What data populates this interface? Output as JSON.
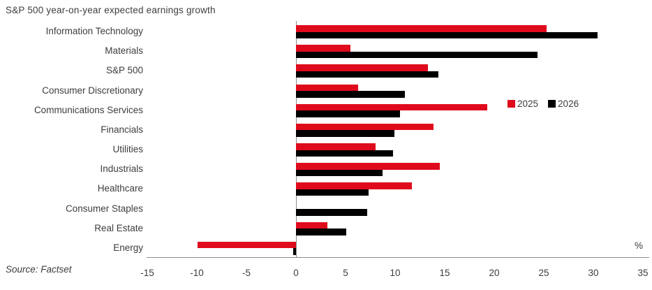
{
  "title": "S&P 500 year-on-year expected earnings growth",
  "source": "Source: Factset",
  "unit_label": "%",
  "colors": {
    "series_2025": "#df0b1c",
    "series_2026": "#000000",
    "axis": "#8c8c8c",
    "text": "#3d3d3d"
  },
  "legend": {
    "position": "inside-right",
    "items": [
      {
        "label": "2025",
        "color": "#df0b1c"
      },
      {
        "label": "2026",
        "color": "#000000"
      }
    ]
  },
  "chart_data": {
    "type": "bar",
    "orientation": "horizontal",
    "title": "S&P 500 year-on-year expected earnings growth",
    "xlabel": "%",
    "ylabel": "",
    "grid": false,
    "xlim": [
      -15,
      35.8
    ],
    "x_ticks": [
      -15,
      -10,
      -5,
      0,
      5,
      10,
      15,
      20,
      25,
      30,
      35
    ],
    "categories": [
      "Information Technology",
      "Materials",
      "S&P 500",
      "Consumer Discretionary",
      "Communications Services",
      "Financials",
      "Utilities",
      "Industrials",
      "Healthcare",
      "Consumer Staples",
      "Real Estate",
      "Energy"
    ],
    "series": [
      {
        "name": "2025",
        "color": "#df0b1c",
        "values": [
          25.3,
          5.5,
          13.3,
          6.3,
          19.3,
          13.9,
          8.0,
          14.5,
          11.7,
          0,
          3.2,
          -9.9
        ]
      },
      {
        "name": "2026",
        "color": "#000000",
        "values": [
          30.4,
          24.4,
          14.4,
          11.0,
          10.5,
          9.9,
          9.8,
          8.7,
          7.3,
          7.2,
          5.1,
          -0.3
        ]
      }
    ]
  }
}
